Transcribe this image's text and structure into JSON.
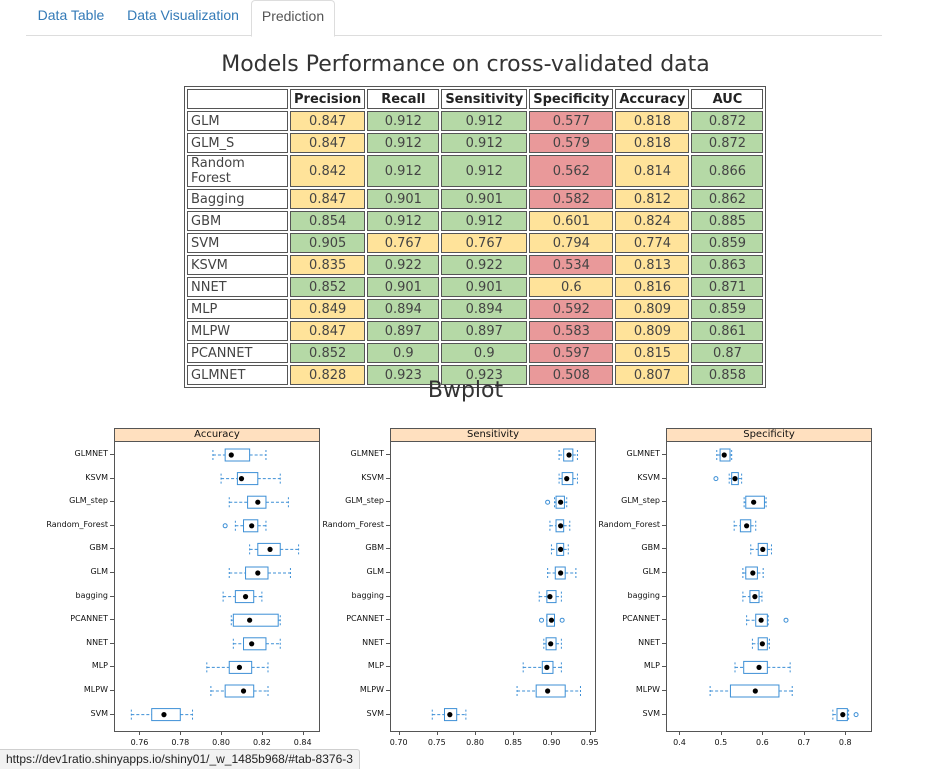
{
  "tabs": [
    "Data Table",
    "Data Visualization",
    "Prediction"
  ],
  "active_tab": "Prediction",
  "table_title": "Models Performance on cross-validated data",
  "bwplot_title": "Bwplot",
  "status_url": "https://dev1ratio.shinyapps.io/shiny01/_w_1485b968/#tab-8376-3",
  "colors": {
    "green": "#b5d9a6",
    "yellow": "#ffe39a",
    "red": "#e9999a",
    "box": "#3c8fd6",
    "strip": "#ffe0bf"
  },
  "perf_table": {
    "columns": [
      "",
      "Precision",
      "Recall",
      "Sensitivity",
      "Specificity",
      "Accuracy",
      "AUC"
    ],
    "rows": [
      {
        "name": "GLM",
        "cells": [
          [
            "0.847",
            "y"
          ],
          [
            "0.912",
            "g"
          ],
          [
            "0.912",
            "g"
          ],
          [
            "0.577",
            "r"
          ],
          [
            "0.818",
            "y"
          ],
          [
            "0.872",
            "g"
          ]
        ]
      },
      {
        "name": "GLM_S",
        "cells": [
          [
            "0.847",
            "y"
          ],
          [
            "0.912",
            "g"
          ],
          [
            "0.912",
            "g"
          ],
          [
            "0.579",
            "r"
          ],
          [
            "0.818",
            "y"
          ],
          [
            "0.872",
            "g"
          ]
        ]
      },
      {
        "name": "Random Forest",
        "cells": [
          [
            "0.842",
            "y"
          ],
          [
            "0.912",
            "g"
          ],
          [
            "0.912",
            "g"
          ],
          [
            "0.562",
            "r"
          ],
          [
            "0.814",
            "y"
          ],
          [
            "0.866",
            "g"
          ]
        ]
      },
      {
        "name": "Bagging",
        "cells": [
          [
            "0.847",
            "y"
          ],
          [
            "0.901",
            "g"
          ],
          [
            "0.901",
            "g"
          ],
          [
            "0.582",
            "r"
          ],
          [
            "0.812",
            "y"
          ],
          [
            "0.862",
            "g"
          ]
        ]
      },
      {
        "name": "GBM",
        "cells": [
          [
            "0.854",
            "g"
          ],
          [
            "0.912",
            "g"
          ],
          [
            "0.912",
            "g"
          ],
          [
            "0.601",
            "y"
          ],
          [
            "0.824",
            "y"
          ],
          [
            "0.885",
            "g"
          ]
        ]
      },
      {
        "name": "SVM",
        "cells": [
          [
            "0.905",
            "g"
          ],
          [
            "0.767",
            "y"
          ],
          [
            "0.767",
            "y"
          ],
          [
            "0.794",
            "y"
          ],
          [
            "0.774",
            "y"
          ],
          [
            "0.859",
            "g"
          ]
        ]
      },
      {
        "name": "KSVM",
        "cells": [
          [
            "0.835",
            "y"
          ],
          [
            "0.922",
            "g"
          ],
          [
            "0.922",
            "g"
          ],
          [
            "0.534",
            "r"
          ],
          [
            "0.813",
            "y"
          ],
          [
            "0.863",
            "g"
          ]
        ]
      },
      {
        "name": "NNET",
        "cells": [
          [
            "0.852",
            "g"
          ],
          [
            "0.901",
            "g"
          ],
          [
            "0.901",
            "g"
          ],
          [
            "0.6",
            "y"
          ],
          [
            "0.816",
            "y"
          ],
          [
            "0.871",
            "g"
          ]
        ]
      },
      {
        "name": "MLP",
        "cells": [
          [
            "0.849",
            "y"
          ],
          [
            "0.894",
            "g"
          ],
          [
            "0.894",
            "g"
          ],
          [
            "0.592",
            "r"
          ],
          [
            "0.809",
            "y"
          ],
          [
            "0.859",
            "g"
          ]
        ]
      },
      {
        "name": "MLPW",
        "cells": [
          [
            "0.847",
            "y"
          ],
          [
            "0.897",
            "g"
          ],
          [
            "0.897",
            "g"
          ],
          [
            "0.583",
            "r"
          ],
          [
            "0.809",
            "y"
          ],
          [
            "0.861",
            "g"
          ]
        ]
      },
      {
        "name": "PCANNET",
        "cells": [
          [
            "0.852",
            "g"
          ],
          [
            "0.9",
            "g"
          ],
          [
            "0.9",
            "g"
          ],
          [
            "0.597",
            "r"
          ],
          [
            "0.815",
            "y"
          ],
          [
            "0.87",
            "g"
          ]
        ]
      },
      {
        "name": "GLMNET",
        "cells": [
          [
            "0.828",
            "y"
          ],
          [
            "0.923",
            "g"
          ],
          [
            "0.923",
            "g"
          ],
          [
            "0.508",
            "r"
          ],
          [
            "0.807",
            "y"
          ],
          [
            "0.858",
            "g"
          ]
        ]
      }
    ]
  },
  "chart_data": [
    {
      "type": "boxplot",
      "title": "Accuracy",
      "xlim": [
        0.748,
        0.848
      ],
      "xticks": [
        "0.76",
        "0.78",
        "0.80",
        "0.82",
        "0.84"
      ],
      "categories": [
        "GLMNET",
        "KSVM",
        "GLM_step",
        "Random_Forest",
        "GBM",
        "GLM",
        "bagging",
        "PCANNET",
        "NNET",
        "MLP",
        "MLPW",
        "SVM"
      ],
      "boxes": [
        {
          "wl": 0.796,
          "q1": 0.802,
          "med": 0.806,
          "q3": 0.814,
          "wh": 0.822,
          "mean": 0.805,
          "out": []
        },
        {
          "wl": 0.8,
          "q1": 0.808,
          "med": 0.811,
          "q3": 0.818,
          "wh": 0.829,
          "mean": 0.81,
          "out": []
        },
        {
          "wl": 0.804,
          "q1": 0.813,
          "med": 0.818,
          "q3": 0.822,
          "wh": 0.833,
          "mean": 0.818,
          "out": []
        },
        {
          "wl": 0.807,
          "q1": 0.811,
          "med": 0.815,
          "q3": 0.818,
          "wh": 0.822,
          "mean": 0.815,
          "out": [
            0.802
          ]
        },
        {
          "wl": 0.814,
          "q1": 0.818,
          "med": 0.823,
          "q3": 0.829,
          "wh": 0.838,
          "mean": 0.824,
          "out": []
        },
        {
          "wl": 0.804,
          "q1": 0.812,
          "med": 0.818,
          "q3": 0.823,
          "wh": 0.834,
          "mean": 0.818,
          "out": []
        },
        {
          "wl": 0.801,
          "q1": 0.807,
          "med": 0.812,
          "q3": 0.816,
          "wh": 0.82,
          "mean": 0.812,
          "out": []
        },
        {
          "wl": 0.805,
          "q1": 0.806,
          "med": 0.809,
          "q3": 0.828,
          "wh": 0.829,
          "mean": 0.814,
          "out": []
        },
        {
          "wl": 0.806,
          "q1": 0.811,
          "med": 0.814,
          "q3": 0.822,
          "wh": 0.829,
          "mean": 0.815,
          "out": []
        },
        {
          "wl": 0.793,
          "q1": 0.804,
          "med": 0.808,
          "q3": 0.815,
          "wh": 0.823,
          "mean": 0.809,
          "out": []
        },
        {
          "wl": 0.795,
          "q1": 0.802,
          "med": 0.81,
          "q3": 0.816,
          "wh": 0.823,
          "mean": 0.811,
          "out": []
        },
        {
          "wl": 0.756,
          "q1": 0.766,
          "med": 0.772,
          "q3": 0.78,
          "wh": 0.786,
          "mean": 0.772,
          "out": []
        }
      ]
    },
    {
      "type": "boxplot",
      "title": "Sensitivity",
      "xlim": [
        0.69,
        0.957
      ],
      "xticks": [
        "0.70",
        "0.75",
        "0.80",
        "0.85",
        "0.90",
        "0.95"
      ],
      "categories": [
        "GLMNET",
        "KSVM",
        "GLM_step",
        "Random_Forest",
        "GBM",
        "GLM",
        "bagging",
        "PCANNET",
        "NNET",
        "MLP",
        "MLPW",
        "SVM"
      ],
      "boxes": [
        {
          "wl": 0.91,
          "q1": 0.916,
          "med": 0.92,
          "q3": 0.928,
          "wh": 0.934,
          "mean": 0.923,
          "out": []
        },
        {
          "wl": 0.91,
          "q1": 0.914,
          "med": 0.921,
          "q3": 0.928,
          "wh": 0.934,
          "mean": 0.92,
          "out": []
        },
        {
          "wl": 0.904,
          "q1": 0.906,
          "med": 0.912,
          "q3": 0.917,
          "wh": 0.92,
          "mean": 0.912,
          "out": [
            0.895
          ]
        },
        {
          "wl": 0.898,
          "q1": 0.906,
          "med": 0.912,
          "q3": 0.916,
          "wh": 0.924,
          "mean": 0.912,
          "out": []
        },
        {
          "wl": 0.9,
          "q1": 0.907,
          "med": 0.912,
          "q3": 0.916,
          "wh": 0.922,
          "mean": 0.912,
          "out": []
        },
        {
          "wl": 0.895,
          "q1": 0.905,
          "med": 0.912,
          "q3": 0.918,
          "wh": 0.932,
          "mean": 0.912,
          "out": []
        },
        {
          "wl": 0.884,
          "q1": 0.894,
          "med": 0.901,
          "q3": 0.906,
          "wh": 0.913,
          "mean": 0.898,
          "out": []
        },
        {
          "wl": 0.894,
          "q1": 0.894,
          "med": 0.9,
          "q3": 0.904,
          "wh": 0.904,
          "mean": 0.9,
          "out": [
            0.887,
            0.914
          ]
        },
        {
          "wl": 0.89,
          "q1": 0.893,
          "med": 0.901,
          "q3": 0.906,
          "wh": 0.913,
          "mean": 0.899,
          "out": []
        },
        {
          "wl": 0.863,
          "q1": 0.888,
          "med": 0.896,
          "q3": 0.902,
          "wh": 0.913,
          "mean": 0.894,
          "out": []
        },
        {
          "wl": 0.855,
          "q1": 0.88,
          "med": 0.897,
          "q3": 0.918,
          "wh": 0.938,
          "mean": 0.895,
          "out": []
        },
        {
          "wl": 0.744,
          "q1": 0.76,
          "med": 0.768,
          "q3": 0.776,
          "wh": 0.788,
          "mean": 0.767,
          "out": []
        }
      ]
    },
    {
      "type": "boxplot",
      "title": "Specificity",
      "xlim": [
        0.37,
        0.862
      ],
      "xticks": [
        "0.4",
        "0.5",
        "0.6",
        "0.7",
        "0.8"
      ],
      "categories": [
        "GLMNET",
        "KSVM",
        "GLM_step",
        "Random_Forest",
        "GBM",
        "GLM",
        "bagging",
        "PCANNET",
        "NNET",
        "MLP",
        "MLPW",
        "SVM"
      ],
      "boxes": [
        {
          "wl": 0.49,
          "q1": 0.498,
          "med": 0.508,
          "q3": 0.522,
          "wh": 0.526,
          "mean": 0.508,
          "out": []
        },
        {
          "wl": 0.52,
          "q1": 0.526,
          "med": 0.534,
          "q3": 0.542,
          "wh": 0.55,
          "mean": 0.534,
          "out": [
            0.488
          ]
        },
        {
          "wl": 0.556,
          "q1": 0.56,
          "med": 0.571,
          "q3": 0.605,
          "wh": 0.609,
          "mean": 0.579,
          "out": []
        },
        {
          "wl": 0.532,
          "q1": 0.547,
          "med": 0.562,
          "q3": 0.572,
          "wh": 0.584,
          "mean": 0.562,
          "out": []
        },
        {
          "wl": 0.572,
          "q1": 0.59,
          "med": 0.6,
          "q3": 0.612,
          "wh": 0.622,
          "mean": 0.601,
          "out": []
        },
        {
          "wl": 0.553,
          "q1": 0.56,
          "med": 0.577,
          "q3": 0.588,
          "wh": 0.602,
          "mean": 0.577,
          "out": []
        },
        {
          "wl": 0.553,
          "q1": 0.57,
          "med": 0.582,
          "q3": 0.592,
          "wh": 0.599,
          "mean": 0.582,
          "out": []
        },
        {
          "wl": 0.562,
          "q1": 0.584,
          "med": 0.597,
          "q3": 0.612,
          "wh": 0.614,
          "mean": 0.597,
          "out": [
            0.657
          ]
        },
        {
          "wl": 0.576,
          "q1": 0.59,
          "med": 0.6,
          "q3": 0.612,
          "wh": 0.617,
          "mean": 0.6,
          "out": []
        },
        {
          "wl": 0.534,
          "q1": 0.555,
          "med": 0.592,
          "q3": 0.612,
          "wh": 0.667,
          "mean": 0.592,
          "out": []
        },
        {
          "wl": 0.474,
          "q1": 0.523,
          "med": 0.583,
          "q3": 0.64,
          "wh": 0.672,
          "mean": 0.583,
          "out": []
        },
        {
          "wl": 0.77,
          "q1": 0.78,
          "med": 0.793,
          "q3": 0.805,
          "wh": 0.808,
          "mean": 0.794,
          "out": [
            0.826
          ]
        }
      ]
    }
  ]
}
